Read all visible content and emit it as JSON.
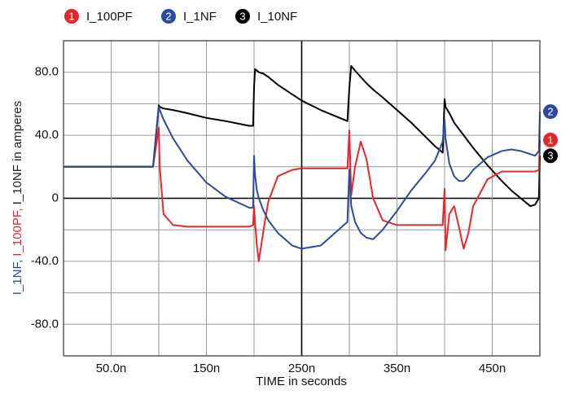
{
  "chart_data": {
    "type": "line",
    "legend": "top",
    "grid": true,
    "xlabel": "TIME in seconds",
    "ylabel": [
      {
        "text": "I_1NF, ",
        "color": "#2e4a9e"
      },
      {
        "text": "I_100PF, ",
        "color": "#e8262a"
      },
      {
        "text": "I_10NF in amperes",
        "color": "#222222"
      }
    ],
    "xlim": [
      0,
      5e-07
    ],
    "ylim": [
      -100,
      100
    ],
    "xticks": [
      {
        "value": 5e-08,
        "label": "50.0n"
      },
      {
        "value": 1e-07,
        "label": null
      },
      {
        "value": 1.5e-07,
        "label": "150n"
      },
      {
        "value": 2e-07,
        "label": null
      },
      {
        "value": 2.5e-07,
        "label": "250n"
      },
      {
        "value": 3e-07,
        "label": null
      },
      {
        "value": 3.5e-07,
        "label": "350n"
      },
      {
        "value": 4e-07,
        "label": null
      },
      {
        "value": 4.5e-07,
        "label": "450n"
      }
    ],
    "yticks": [
      {
        "value": -80,
        "label": "-80.0"
      },
      {
        "value": -60,
        "label": null
      },
      {
        "value": -40,
        "label": "-40.0"
      },
      {
        "value": -20,
        "label": null
      },
      0,
      {
        "value": 20,
        "label": null
      },
      {
        "value": 40,
        "label": "40.0"
      },
      {
        "value": 60,
        "label": null
      },
      {
        "value": 80,
        "label": "80.0"
      }
    ],
    "x": [
      0,
      9.4e-08,
      1e-07,
      1.01e-07,
      1.05e-07,
      1.15e-07,
      1.3e-07,
      1.5e-07,
      1.7e-07,
      1.95e-07,
      1.99e-07,
      2e-07,
      2.01e-07,
      2.03e-07,
      2.05e-07,
      2.1e-07,
      2.15e-07,
      2.25e-07,
      2.4e-07,
      2.5e-07,
      2.7e-07,
      2.98e-07,
      3e-07,
      3.02e-07,
      3.06e-07,
      3.12e-07,
      3.18e-07,
      3.25e-07,
      3.35e-07,
      3.5e-07,
      3.65e-07,
      3.8e-07,
      3.9e-07,
      3.98e-07,
      4e-07,
      4.01e-07,
      4.05e-07,
      4.1e-07,
      4.15e-07,
      4.2e-07,
      4.25e-07,
      4.3e-07,
      4.45e-07,
      4.6e-07,
      4.7e-07,
      4.8e-07,
      4.9e-07,
      4.95e-07,
      4.99e-07,
      5e-07
    ],
    "series": [
      {
        "name": "I_100PF",
        "marker": "1",
        "color": "#e8262a",
        "values": [
          20,
          20,
          45,
          20,
          -10,
          -17,
          -18,
          -18,
          -18,
          -18,
          -17,
          -5,
          -15,
          -30,
          -40,
          -20,
          -2,
          14,
          18,
          19,
          19,
          19,
          43,
          2,
          20,
          36,
          25,
          0,
          -14,
          -17,
          -17,
          -17,
          -17,
          -17,
          6,
          -33,
          -10,
          -5,
          -18,
          -32,
          -22,
          -5,
          12,
          17,
          17,
          17,
          17,
          17,
          18,
          37
        ]
      },
      {
        "name": "I_1NF",
        "marker": "2",
        "color": "#2e4a9e",
        "values": [
          20,
          20,
          58,
          56,
          50,
          38,
          24,
          10,
          1,
          -6,
          -6,
          27,
          15,
          5,
          0,
          -8,
          -14,
          -22,
          -30,
          -32,
          -30,
          -15,
          18,
          -5,
          -15,
          -22,
          -25,
          -26,
          -20,
          -8,
          5,
          16,
          24,
          36,
          50,
          38,
          22,
          14,
          11,
          11,
          14,
          18,
          26,
          30,
          31,
          30,
          28,
          27,
          30,
          55
        ]
      },
      {
        "name": "I_10NF",
        "marker": "3",
        "color": "#000000",
        "values": [
          20,
          20,
          59,
          58,
          57,
          56,
          54,
          51,
          49,
          46,
          46,
          70,
          82,
          81,
          80,
          79,
          77,
          72,
          66,
          62,
          56,
          49,
          70,
          84,
          81,
          77,
          73,
          69,
          64,
          56,
          48,
          39,
          33,
          29,
          63,
          58,
          54,
          48,
          44,
          40,
          36,
          32,
          21,
          11,
          5,
          0,
          -5,
          -4,
          0,
          27
        ]
      }
    ]
  }
}
